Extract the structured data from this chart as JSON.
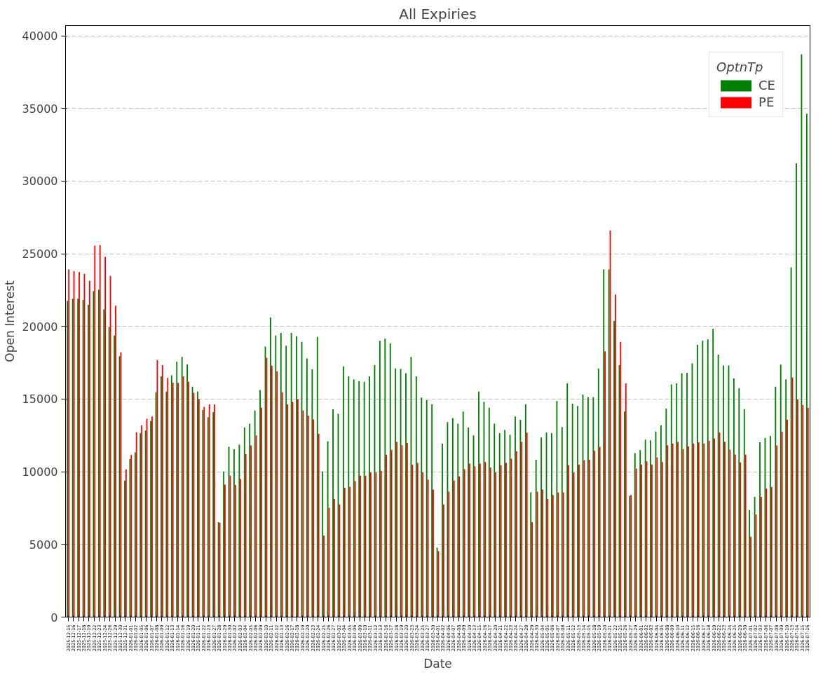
{
  "chart_data": {
    "type": "bar",
    "title": "All Expiries",
    "xlabel": "Date",
    "ylabel": "Open Interest",
    "legend_title": "OptnTp",
    "legend": "top right",
    "grid": "y",
    "ylim": [
      0,
      40700
    ],
    "yticks": [
      0,
      5000,
      10000,
      15000,
      20000,
      25000,
      30000,
      35000,
      40000
    ],
    "categories": [
      "2025-12-15",
      "2025-12-16",
      "2025-12-17",
      "2025-12-18",
      "2025-12-19",
      "2025-12-22",
      "2025-12-23",
      "2025-12-24",
      "2025-12-26",
      "2025-12-29",
      "2025-12-30",
      "2025-12-31",
      "2026-01-01",
      "2026-01-02",
      "2026-01-05",
      "2026-01-06",
      "2026-01-07",
      "2026-01-08",
      "2026-01-09",
      "2026-01-12",
      "2026-01-13",
      "2026-01-14",
      "2026-01-16",
      "2026-01-19",
      "2026-01-20",
      "2026-01-21",
      "2026-01-22",
      "2026-01-23",
      "2026-01-27",
      "2026-01-28",
      "2026-01-29",
      "2026-01-30",
      "2026-02-02",
      "2026-02-03",
      "2026-02-04",
      "2026-02-05",
      "2026-02-06",
      "2026-02-09",
      "2026-02-10",
      "2026-02-11",
      "2026-02-12",
      "2026-02-13",
      "2026-02-16",
      "2026-02-17",
      "2026-02-18",
      "2026-02-19",
      "2026-02-20",
      "2026-02-23",
      "2026-02-24",
      "2026-02-25",
      "2026-02-26",
      "2026-02-27",
      "2026-03-02",
      "2026-03-04",
      "2026-03-05",
      "2026-03-06",
      "2026-03-09",
      "2026-03-10",
      "2026-03-11",
      "2026-03-12",
      "2026-03-13",
      "2026-03-16",
      "2026-03-17",
      "2026-03-18",
      "2026-03-19",
      "2026-03-20",
      "2026-03-23",
      "2026-03-24",
      "2026-03-25",
      "2026-03-27",
      "2026-03-30",
      "2026-04-01",
      "2026-04-02",
      "2026-04-06",
      "2026-04-07",
      "2026-04-08",
      "2026-04-09",
      "2026-04-10",
      "2026-04-13",
      "2026-04-15",
      "2026-04-16",
      "2026-04-17",
      "2026-04-20",
      "2026-04-21",
      "2026-04-22",
      "2026-04-23",
      "2026-04-24",
      "2026-04-27",
      "2026-04-28",
      "2026-04-29",
      "2026-04-30",
      "2026-05-04",
      "2026-05-05",
      "2026-05-06",
      "2026-05-07",
      "2026-05-08",
      "2026-05-11",
      "2026-05-12",
      "2026-05-13",
      "2026-05-14",
      "2026-05-15",
      "2026-05-18",
      "2026-05-19",
      "2026-05-20",
      "2026-05-21",
      "2026-05-22",
      "2026-05-25",
      "2026-05-26",
      "2026-05-27",
      "2026-05-29",
      "2026-06-01",
      "2026-06-02",
      "2026-06-03",
      "2026-06-04",
      "2026-06-05",
      "2026-06-08",
      "2026-06-09",
      "2026-06-10",
      "2026-06-11",
      "2026-06-12",
      "2026-06-15",
      "2026-06-16",
      "2026-06-17",
      "2026-06-18",
      "2026-06-19",
      "2026-06-22",
      "2026-06-23",
      "2026-06-24",
      "2026-06-25",
      "2026-06-29",
      "2026-06-30",
      "2026-07-01",
      "2026-07-02",
      "2026-07-03",
      "2026-07-06",
      "2026-07-07",
      "2026-07-08",
      "2026-07-09",
      "2026-07-10",
      "2026-07-13",
      "2026-07-14",
      "2026-07-15",
      "2026-07-16"
    ],
    "series": [
      {
        "name": "CE",
        "color": "#008000",
        "values": [
          21760,
          21910,
          21910,
          21820,
          21480,
          22430,
          22520,
          21170,
          19970,
          19370,
          17950,
          9390,
          10880,
          11330,
          12660,
          12840,
          13490,
          15470,
          16570,
          15520,
          16640,
          17570,
          17900,
          17390,
          15850,
          15520,
          14260,
          13760,
          14100,
          6530,
          10020,
          11710,
          11550,
          11870,
          13040,
          13310,
          14210,
          15630,
          18620,
          20610,
          19370,
          19550,
          18670,
          19550,
          19320,
          18940,
          17790,
          17050,
          19280,
          10020,
          12090,
          14300,
          13990,
          17250,
          16570,
          16350,
          16240,
          16190,
          16570,
          17340,
          19010,
          19160,
          18830,
          17110,
          17070,
          16780,
          17900,
          16570,
          15110,
          14930,
          14640,
          4770,
          11940,
          13420,
          13690,
          13310,
          14140,
          13040,
          12500,
          15520,
          14800,
          14410,
          13310,
          12660,
          12880,
          12540,
          13800,
          13580,
          14640,
          8580,
          10830,
          12360,
          12700,
          12660,
          14860,
          13080,
          16080,
          14680,
          14530,
          15310,
          15130,
          15130,
          17110,
          23920,
          23920,
          20380,
          17340,
          14140,
          8350,
          11280,
          11490,
          12210,
          12160,
          12770,
          13200,
          14350,
          16010,
          16080,
          16780,
          16800,
          17460,
          18730,
          19010,
          19110,
          19830,
          18060,
          17310,
          17310,
          16420,
          15760,
          14310,
          7360,
          8270,
          12030,
          12320,
          12470,
          15850,
          17370,
          16360,
          24060,
          31230,
          38720,
          34640
        ]
      },
      {
        "name": "PE",
        "color": "#ff0000",
        "values": [
          23920,
          23800,
          23740,
          23620,
          23130,
          25560,
          25600,
          24790,
          23470,
          21420,
          18220,
          10160,
          11150,
          12720,
          13200,
          13650,
          13800,
          17680,
          17340,
          16460,
          16120,
          16120,
          16570,
          16190,
          15430,
          15000,
          14460,
          14640,
          14640,
          6490,
          9120,
          9730,
          9100,
          9500,
          11210,
          11820,
          12500,
          14410,
          17840,
          17300,
          16910,
          15470,
          14640,
          14800,
          15000,
          14210,
          13870,
          13600,
          12610,
          5610,
          7520,
          8130,
          7750,
          8900,
          8960,
          9350,
          9730,
          9730,
          9950,
          9950,
          10070,
          11170,
          11510,
          12050,
          11820,
          11980,
          10490,
          10610,
          9950,
          9460,
          8780,
          4550,
          7750,
          8630,
          9390,
          9680,
          10180,
          10560,
          10380,
          10560,
          10670,
          10290,
          9950,
          10450,
          10610,
          10900,
          11400,
          12050,
          12700,
          6530,
          8630,
          8780,
          8130,
          8400,
          8580,
          8580,
          10450,
          9950,
          10490,
          10790,
          10830,
          11440,
          11710,
          18290,
          26600,
          22200,
          18940,
          16080,
          8400,
          10220,
          10490,
          10720,
          10490,
          10990,
          10670,
          11820,
          11940,
          12050,
          11560,
          11750,
          11940,
          12030,
          11940,
          12130,
          12280,
          12700,
          12060,
          11530,
          11180,
          10640,
          11180,
          5530,
          7070,
          8270,
          8840,
          8940,
          11810,
          12760,
          13580,
          16480,
          14970,
          14590,
          14400
        ]
      }
    ]
  }
}
